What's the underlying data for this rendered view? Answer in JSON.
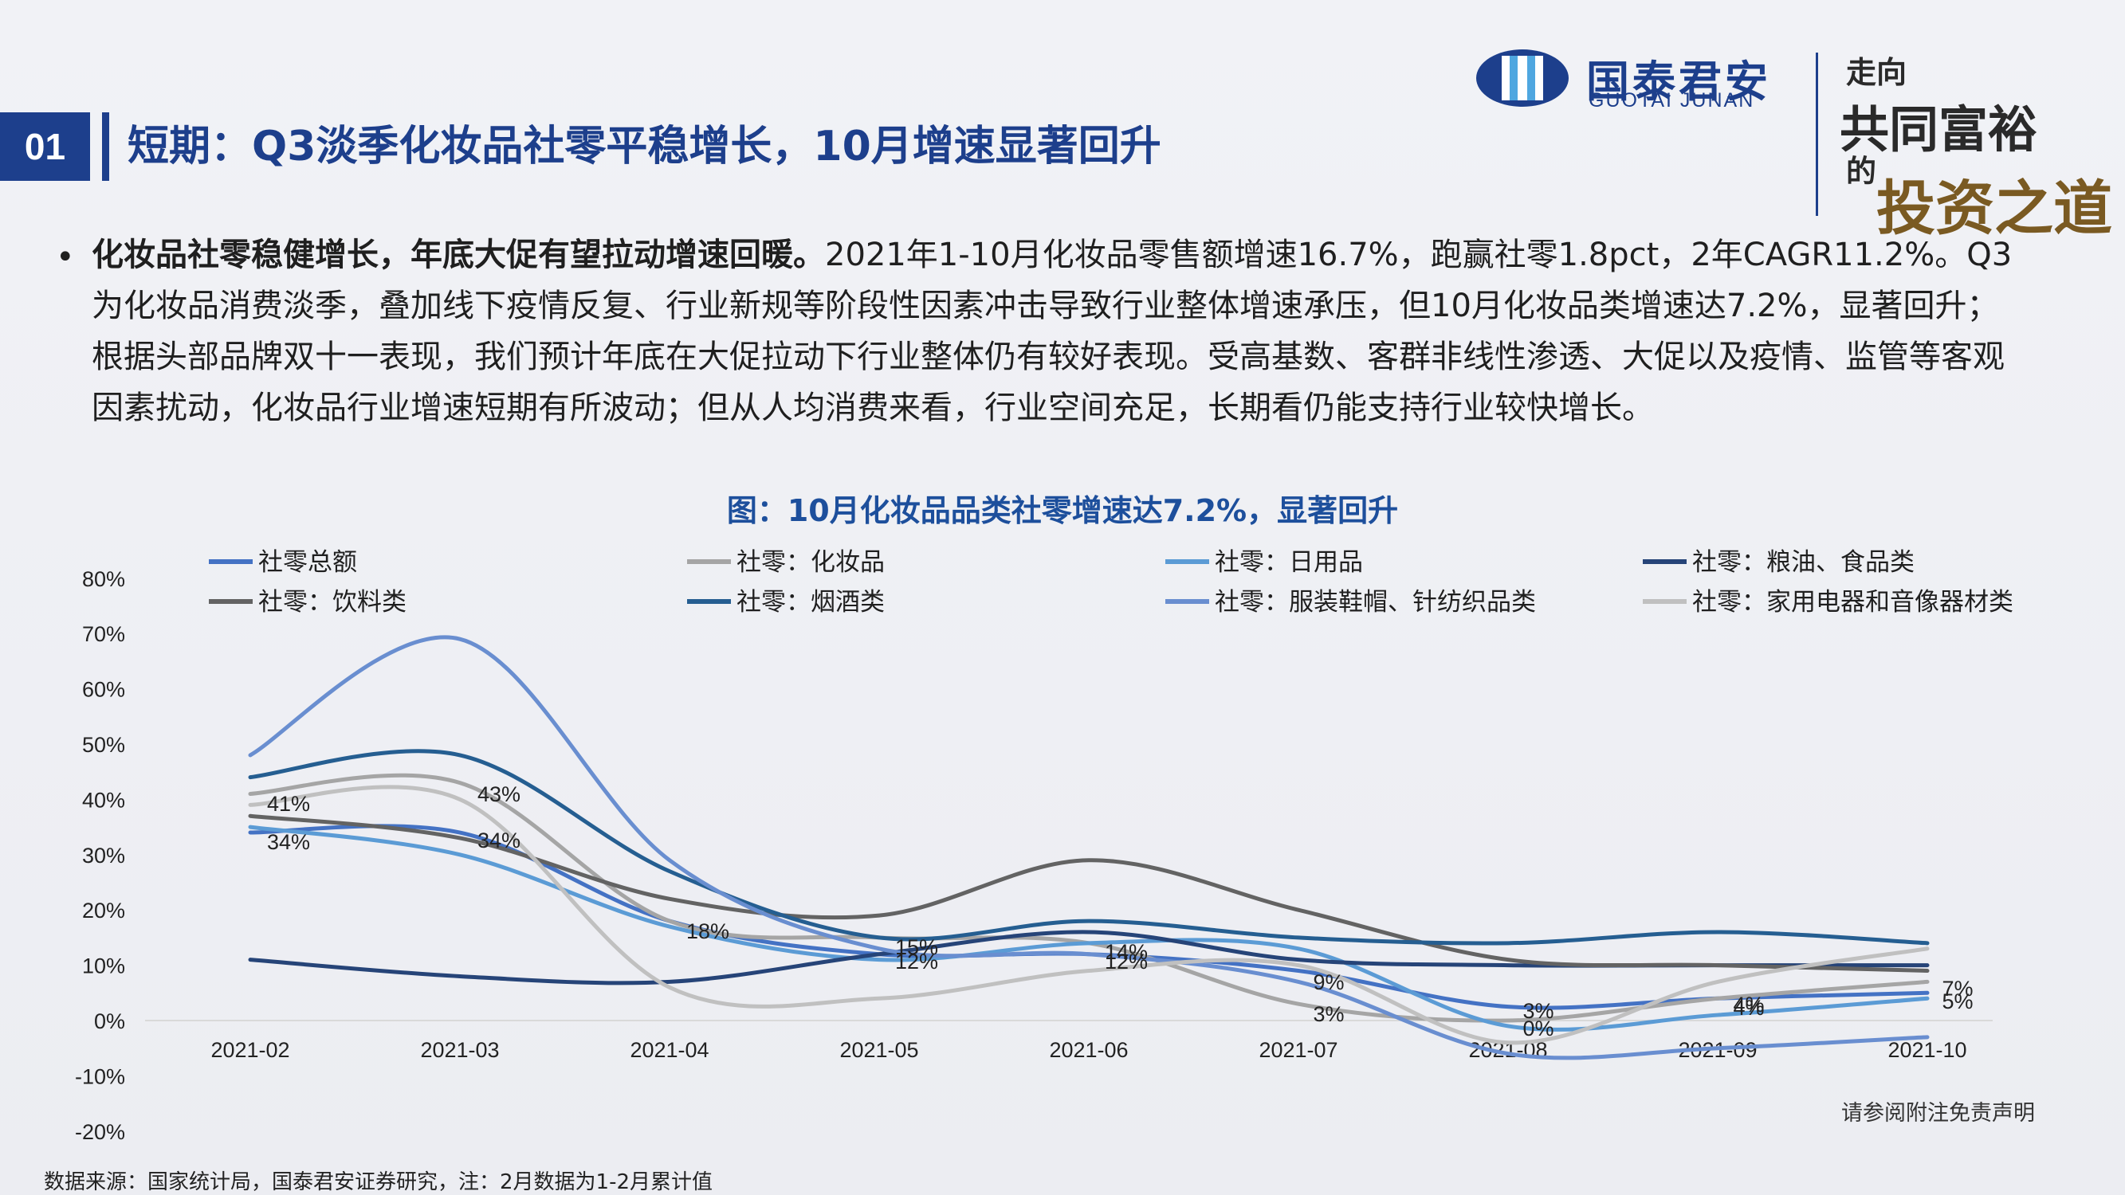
{
  "header": {
    "section_number": "01",
    "title": "短期：Q3淡季化妆品社零平稳增长，10月增速显著回升",
    "logo_cn": "国泰君安",
    "logo_en": "GUOTAI JUNAN",
    "slogan_parts": [
      "走向",
      "共同富裕",
      "的",
      "投资之道"
    ]
  },
  "bullet": {
    "bold_lead": "化妆品社零稳健增长，年底大促有望拉动增速回暖。",
    "body": "2021年1-10月化妆品零售额增速16.7%，跑赢社零1.8pct，2年CAGR11.2%。Q3为化妆品消费淡季，叠加线下疫情反复、行业新规等阶段性因素冲击导致行业整体增速承压，但10月化妆品类增速达7.2%，显著回升；根据头部品牌双十一表现，我们预计年底在大促拉动下行业整体仍有较好表现。受高基数、客群非线性渗透、大促以及疫情、监管等客观因素扰动，化妆品行业增速短期有所波动；但从人均消费来看，行业空间充足，长期看仍能支持行业较快增长。"
  },
  "chart_title": "图：10月化妆品品类社零增速达7.2%，显著回升",
  "chart_data": {
    "type": "line",
    "x": [
      "2021-02",
      "2021-03",
      "2021-04",
      "2021-05",
      "2021-06",
      "2021-07",
      "2021-08",
      "2021-09",
      "2021-10"
    ],
    "ylim": [
      -20,
      80
    ],
    "yticks": [
      "80%",
      "70%",
      "60%",
      "50%",
      "40%",
      "30%",
      "20%",
      "10%",
      "0%",
      "-10%",
      "-20%"
    ],
    "ytick_values": [
      80,
      70,
      60,
      50,
      40,
      30,
      20,
      10,
      0,
      -10,
      -20
    ],
    "legend_position": "top",
    "series": [
      {
        "name": "社零总额",
        "color": "#4472c4",
        "values": [
          34,
          34,
          18,
          12,
          12,
          9,
          2.5,
          4,
          5
        ],
        "labelled": true
      },
      {
        "name": "社零：化妆品",
        "color": "#a5a5a5",
        "values": [
          41,
          43,
          18,
          15,
          14,
          3,
          0,
          4,
          7
        ],
        "labelled": true
      },
      {
        "name": "社零：日用品",
        "color": "#5b9bd5",
        "values": [
          35,
          30,
          17,
          11,
          14,
          13,
          -1,
          1,
          4
        ],
        "labelled": false
      },
      {
        "name": "社零：粮油、食品类",
        "color": "#264478",
        "values": [
          11,
          8,
          7,
          12,
          16,
          11,
          10,
          10,
          10
        ],
        "labelled": false
      },
      {
        "name": "社零：饮料类",
        "color": "#636363",
        "values": [
          37,
          33,
          22,
          19,
          29,
          20,
          11,
          10,
          9
        ],
        "labelled": false
      },
      {
        "name": "社零：烟酒类",
        "color": "#255e91",
        "values": [
          44,
          48,
          27,
          15,
          18,
          15,
          14,
          16,
          14
        ],
        "labelled": false
      },
      {
        "name": "社零：服装鞋帽、针纺织品类",
        "color": "#698ed0",
        "values": [
          48,
          69,
          29,
          13,
          12,
          7,
          -6,
          -5,
          -3
        ],
        "labelled": false
      },
      {
        "name": "社零：家用电器和音像器材类",
        "color": "#c0c0c0",
        "values": [
          39,
          40,
          6,
          4,
          9,
          10,
          -4,
          7,
          13
        ],
        "labelled": false
      }
    ],
    "data_labels": [
      {
        "text": "41%"
      },
      {
        "text": "34%"
      },
      {
        "text": "43%"
      },
      {
        "text": "34%"
      },
      {
        "text": "18%"
      },
      {
        "text": "15%"
      },
      {
        "text": "12%"
      },
      {
        "text": "14%"
      },
      {
        "text": "12%"
      },
      {
        "text": "9%"
      },
      {
        "text": "3%"
      },
      {
        "text": "3%"
      },
      {
        "text": "0%"
      },
      {
        "text": "4%"
      },
      {
        "text": "4%"
      },
      {
        "text": "7%"
      },
      {
        "text": "5%"
      }
    ]
  },
  "footer": {
    "source": "数据来源：国家统计局，国泰君安证券研究，注：2月数据为1-2月累计值",
    "disclaimer": "请参阅附注免责声明"
  }
}
